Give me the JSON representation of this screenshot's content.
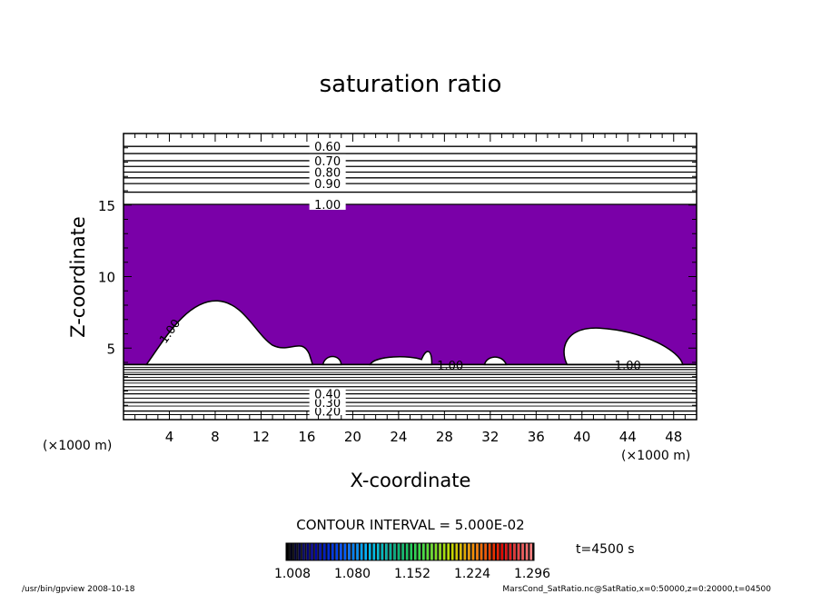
{
  "chart_data": {
    "type": "contour",
    "title": "saturation ratio",
    "xlabel": "X-coordinate",
    "ylabel": "Z-coordinate",
    "x_unit": "(×1000 m)",
    "y_unit": "(×1000 m)",
    "xlim": [
      0,
      50
    ],
    "ylim": [
      0,
      20
    ],
    "x_ticks": [
      "4",
      "8",
      "12",
      "16",
      "20",
      "24",
      "28",
      "32",
      "36",
      "40",
      "44",
      "48"
    ],
    "y_ticks": [
      "5",
      "10",
      "15"
    ],
    "contour_interval_text": "CONTOUR INTERVAL = 5.000E-02",
    "time_text": "t=4500 s",
    "fill_color": "#7a00a8",
    "upper_contours": [
      {
        "level": 0.6,
        "z": 19.1,
        "label": "0.60"
      },
      {
        "level": 0.65,
        "z": 18.6,
        "label": ""
      },
      {
        "level": 0.7,
        "z": 18.1,
        "label": "0.70"
      },
      {
        "level": 0.75,
        "z": 17.7,
        "label": ""
      },
      {
        "level": 0.8,
        "z": 17.3,
        "label": "0.80"
      },
      {
        "level": 0.85,
        "z": 16.9,
        "label": ""
      },
      {
        "level": 0.9,
        "z": 16.5,
        "label": "0.90"
      },
      {
        "level": 0.95,
        "z": 15.9,
        "label": ""
      },
      {
        "level": 1.0,
        "z": 15.05,
        "label": "1.00"
      }
    ],
    "lower_contours": [
      {
        "level": 0.2,
        "z": 0.6,
        "label": "0.20"
      },
      {
        "level": 0.3,
        "z": 1.2,
        "label": "0.30"
      },
      {
        "level": 0.4,
        "z": 1.8,
        "label": "0.40"
      },
      {
        "level": 0.5,
        "z": 2.3,
        "label": ""
      },
      {
        "level": 0.6,
        "z": 2.75,
        "label": ""
      },
      {
        "level": 0.7,
        "z": 3.15,
        "label": ""
      },
      {
        "level": 0.8,
        "z": 3.5,
        "label": ""
      }
    ],
    "inline_labels": [
      {
        "text": "1.00",
        "x": 28.5,
        "z": 3.8
      },
      {
        "text": "1.00",
        "x": 44.0,
        "z": 3.8
      },
      {
        "text": "1.00",
        "x": 4.0,
        "z": 6.2
      }
    ],
    "colorbar": {
      "ticks": [
        "1.008",
        "1.080",
        "1.152",
        "1.224",
        "1.296"
      ],
      "colors": [
        "#000000",
        "#0000a0",
        "#0050ff",
        "#00c0ff",
        "#00b080",
        "#40e040",
        "#c0e000",
        "#ff8000",
        "#e00000",
        "#ff8080"
      ]
    }
  },
  "footer": {
    "left": "/usr/bin/gpview   2008-10-18",
    "right": "MarsCond_SatRatio.nc@SatRatio,x=0:50000,z=0:20000,t=04500"
  }
}
